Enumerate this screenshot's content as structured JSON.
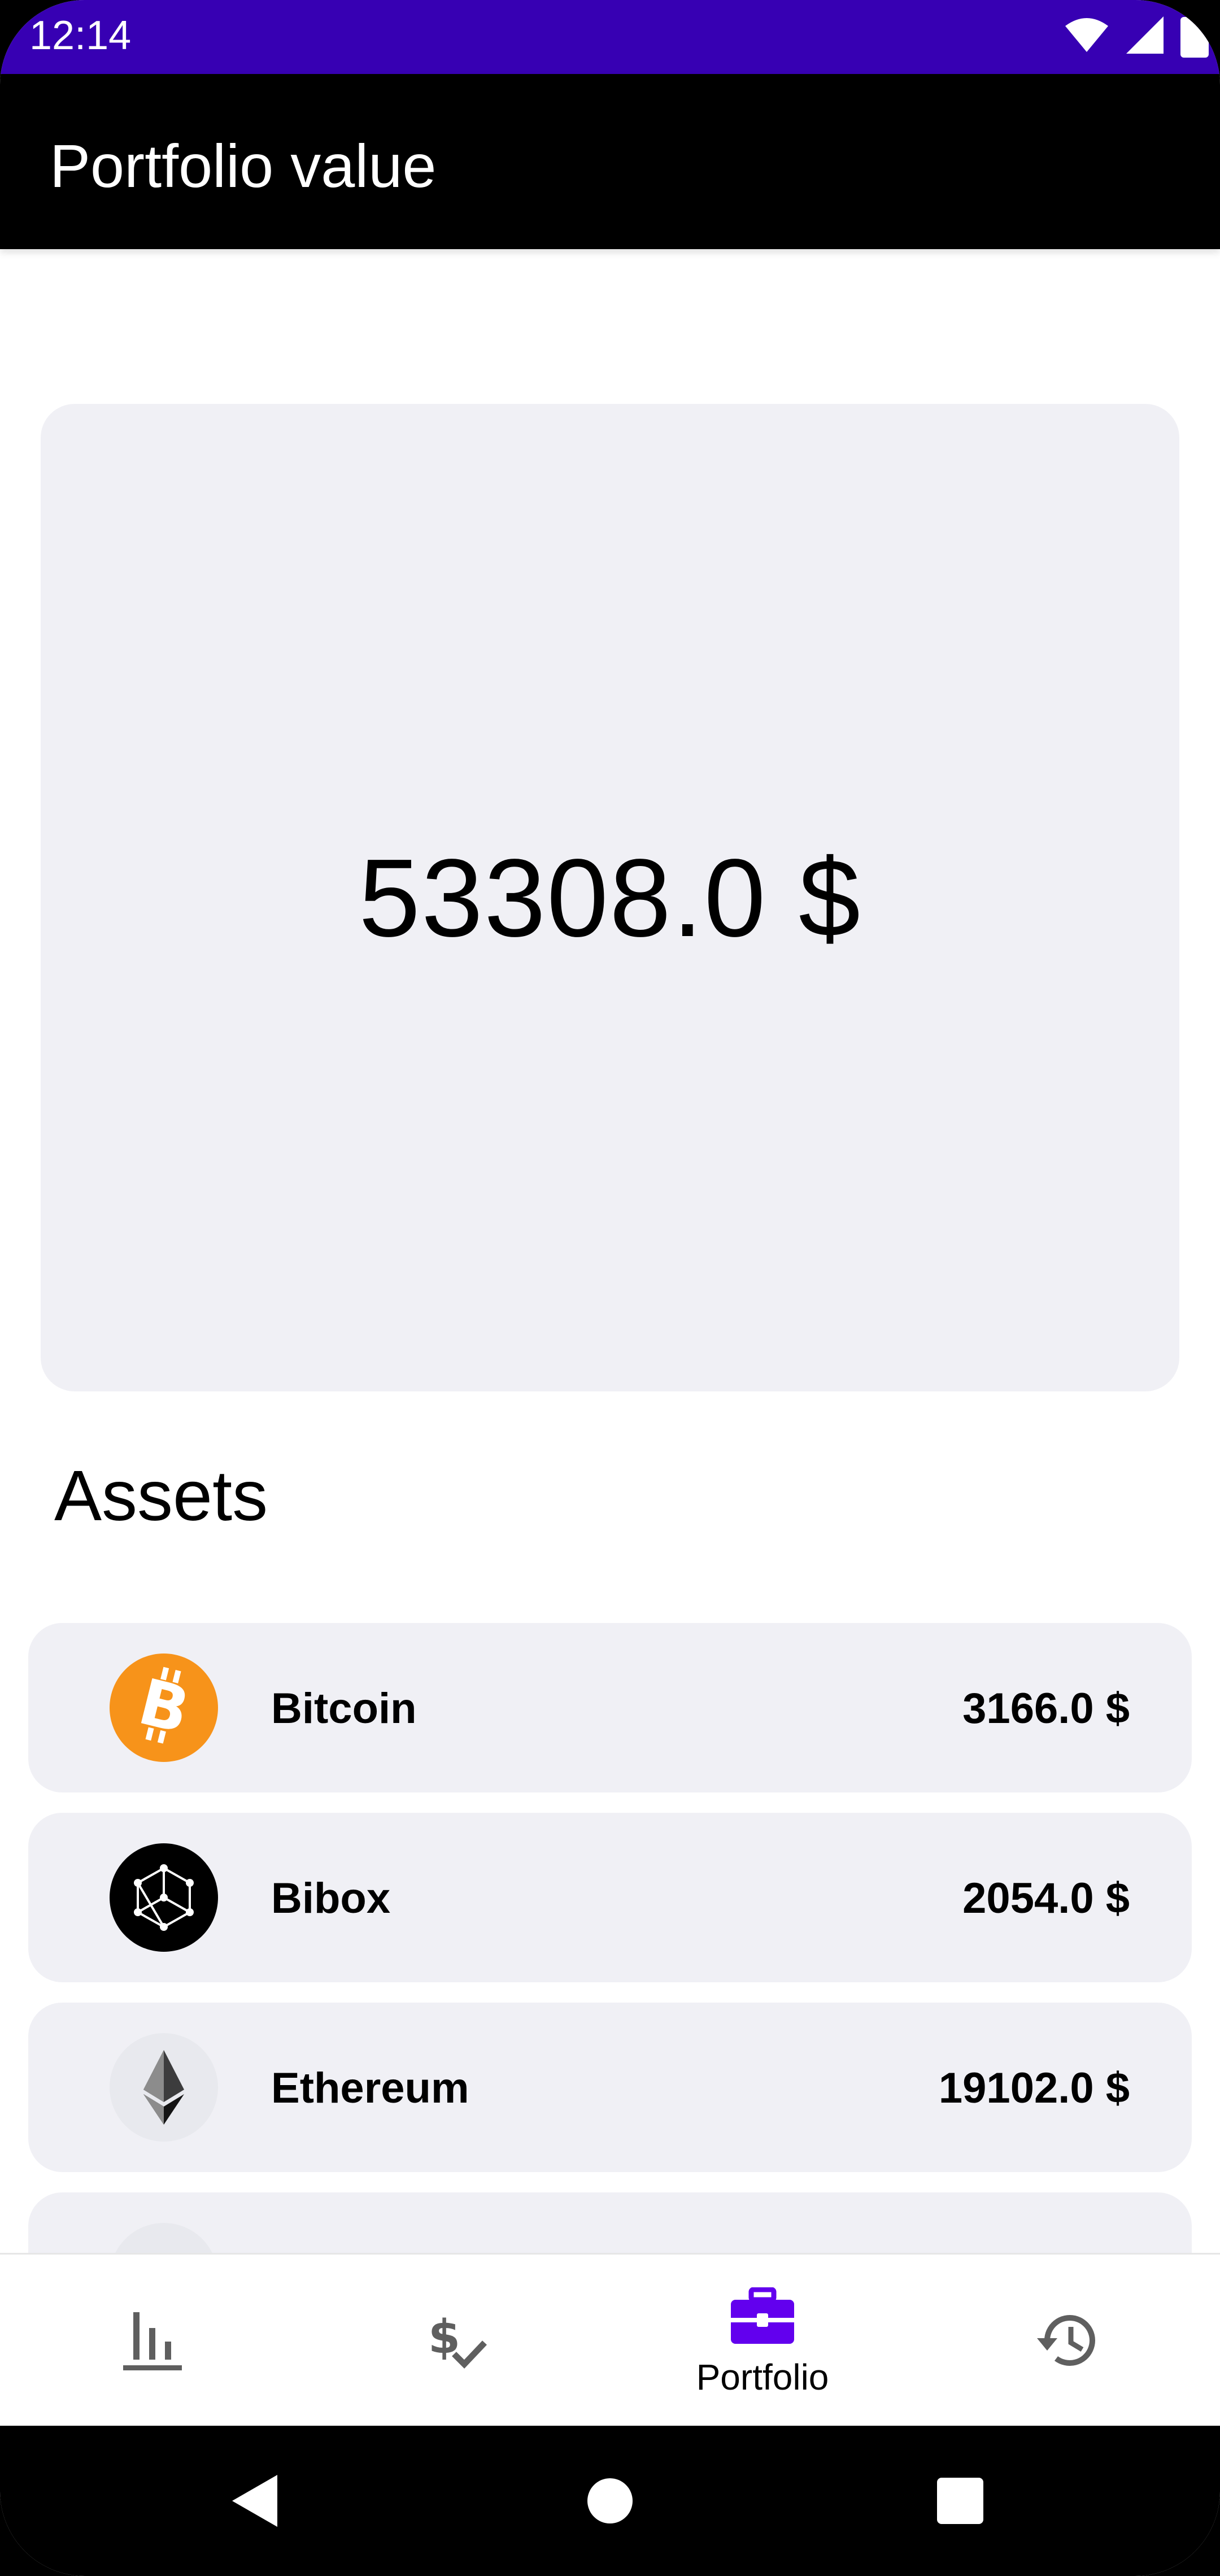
{
  "status_bar": {
    "time": "12:14",
    "icons": [
      "wifi-icon",
      "cellular-signal-icon",
      "battery-icon"
    ]
  },
  "app_bar": {
    "title": "Portfolio value"
  },
  "portfolio": {
    "total_value": "53308.0 $"
  },
  "assets": {
    "heading": "Assets",
    "items": [
      {
        "name": "Bitcoin",
        "value": "3166.0 $",
        "icon": "bitcoin-icon"
      },
      {
        "name": "Bibox",
        "value": "2054.0 $",
        "icon": "bibox-icon"
      },
      {
        "name": "Ethereum",
        "value": "19102.0 $",
        "icon": "ethereum-icon"
      }
    ]
  },
  "bottom_nav": {
    "items": [
      {
        "icon": "bar-chart-icon",
        "label": "",
        "selected": false
      },
      {
        "icon": "dollar-check-icon",
        "label": "",
        "selected": false
      },
      {
        "icon": "briefcase-icon",
        "label": "Portfolio",
        "selected": true
      },
      {
        "icon": "history-icon",
        "label": "",
        "selected": false
      }
    ]
  },
  "system_nav": {
    "buttons": [
      "back-icon",
      "home-icon",
      "recents-icon"
    ]
  },
  "colors": {
    "status_bar": "#3700b3",
    "app_bar": "#000000",
    "card_background": "#f0f0f5",
    "accent": "#6200ee",
    "bitcoin_orange": "#f7931a",
    "nav_icon_inactive": "#5f5f5f"
  }
}
